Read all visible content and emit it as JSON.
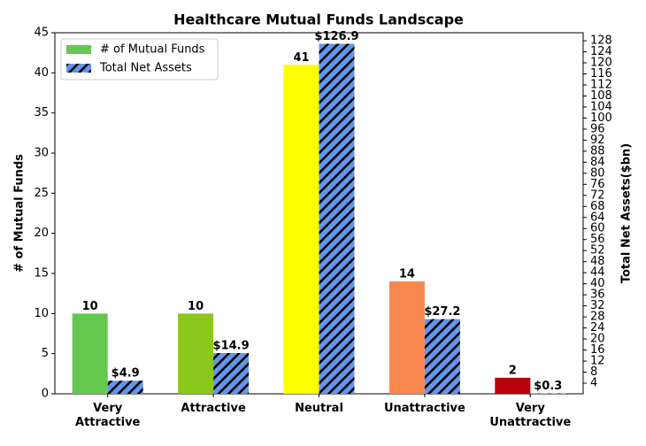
{
  "chart_data": {
    "type": "bar",
    "title": "Healthcare Mutual Funds Landscape",
    "categories": [
      "Very\nAttractive",
      "Attractive",
      "Neutral",
      "Unattractive",
      "Very\nUnattractive"
    ],
    "y_label": "# of Mutual Funds",
    "y2_label": "Total Net Assets($bn)",
    "series": [
      {
        "name": "# of Mutual Funds",
        "colors": [
          "#64c94e",
          "#8cc71b",
          "#ffff00",
          "#f8884f",
          "#b8000d"
        ],
        "values": [
          10,
          10,
          41,
          14,
          2
        ]
      },
      {
        "name": "Total Net Assets",
        "axis": "y2",
        "color": "#6495ed",
        "hatch": true,
        "values": [
          4.9,
          14.9,
          126.9,
          27.2,
          0.3
        ],
        "value_labels": [
          "$4.9",
          "$14.9",
          "$126.9",
          "$27.2",
          "$0.3"
        ]
      }
    ],
    "ylim": [
      0,
      45
    ],
    "yticks": [
      0,
      5,
      10,
      15,
      20,
      25,
      30,
      35,
      40,
      45
    ],
    "y2lim": [
      0.15,
      130.9
    ],
    "y2ticks": [
      4,
      8,
      12,
      16,
      20,
      24,
      28,
      32,
      36,
      40,
      44,
      48,
      52,
      56,
      60,
      64,
      68,
      72,
      76,
      80,
      84,
      88,
      92,
      96,
      100,
      104,
      108,
      112,
      116,
      120,
      124,
      128
    ],
    "legend": "upper left"
  }
}
